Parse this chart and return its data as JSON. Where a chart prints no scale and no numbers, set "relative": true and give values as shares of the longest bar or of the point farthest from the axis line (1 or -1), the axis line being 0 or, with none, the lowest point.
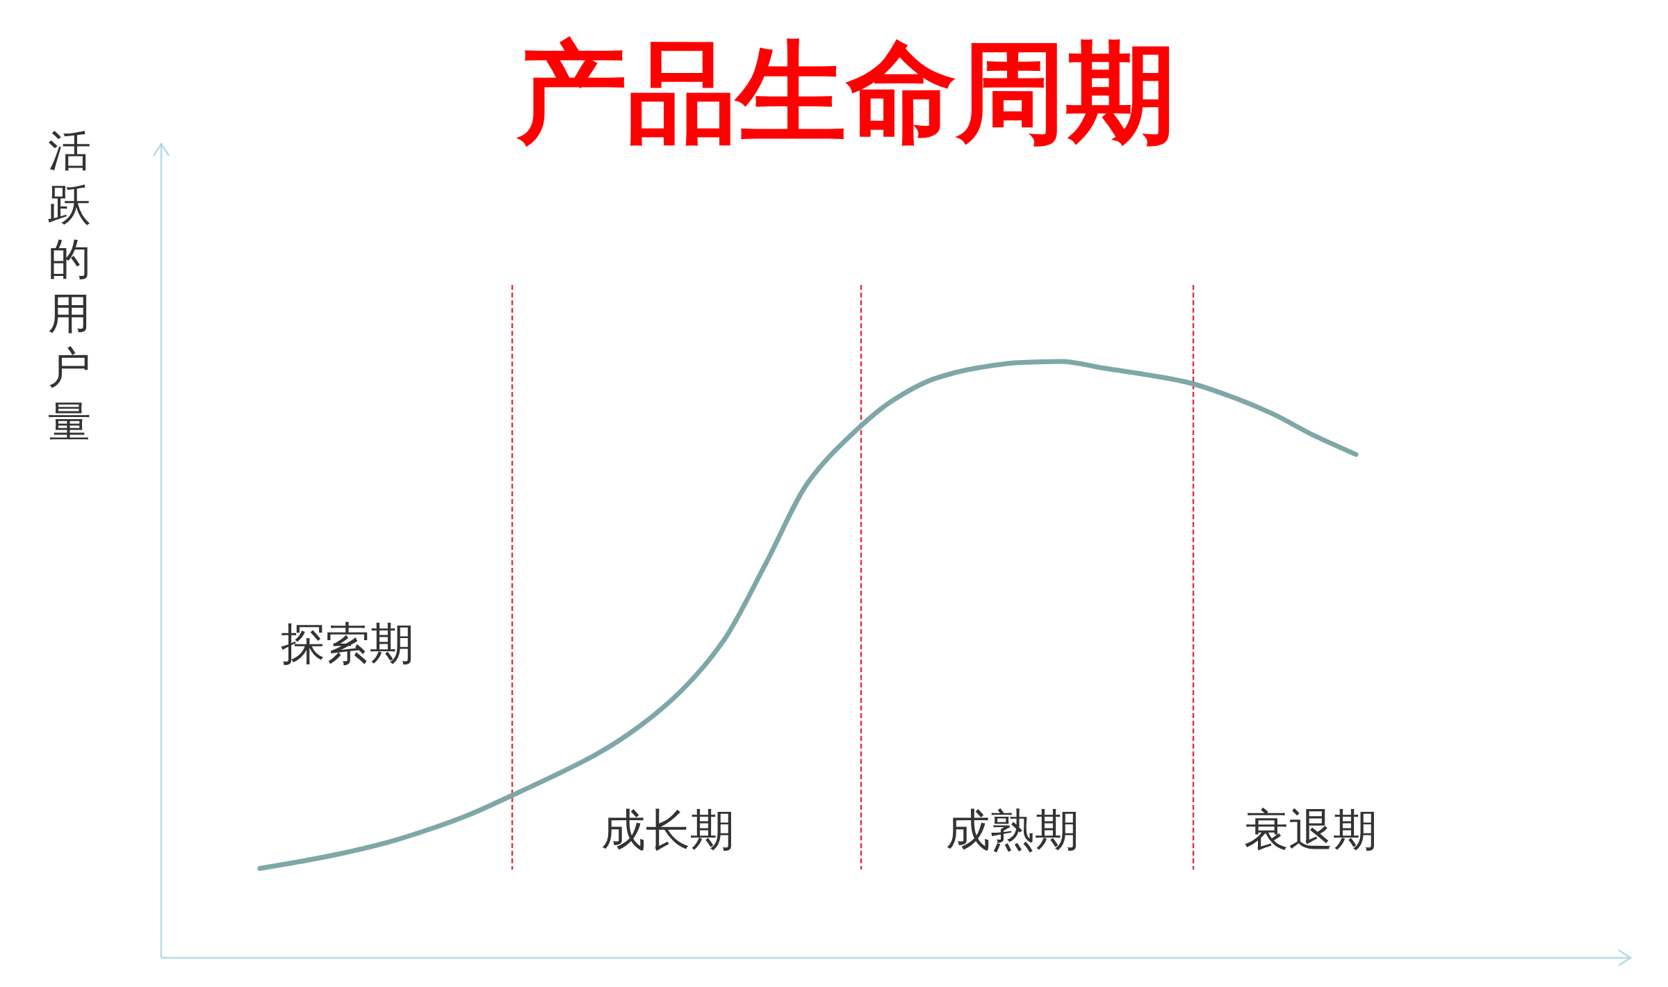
{
  "chart_data": {
    "type": "line",
    "title": "产品生命周期",
    "ylabel": "活跃的用户量",
    "relative": true,
    "categories": [
      null,
      null,
      null,
      null,
      null,
      null,
      null,
      null,
      null,
      null,
      null,
      null,
      null,
      null,
      null,
      null,
      null,
      null,
      null,
      null,
      null,
      null,
      null,
      null,
      null,
      null,
      null
    ],
    "series": [
      {
        "color": "#7ea7a8",
        "values": [
          0.15,
          0.162,
          0.176,
          0.193,
          0.215,
          0.241,
          0.273,
          0.306,
          0.342,
          0.388,
          0.448,
          0.532,
          0.661,
          0.797,
          0.875,
          0.934,
          0.971,
          0.989,
          0.998,
          1.0,
          0.989,
          0.978,
          0.965,
          0.942,
          0.913,
          0.876,
          0.844
        ]
      }
    ],
    "annotations": [
      "探索期",
      "成长期",
      "成熟期",
      "衰退期"
    ]
  }
}
